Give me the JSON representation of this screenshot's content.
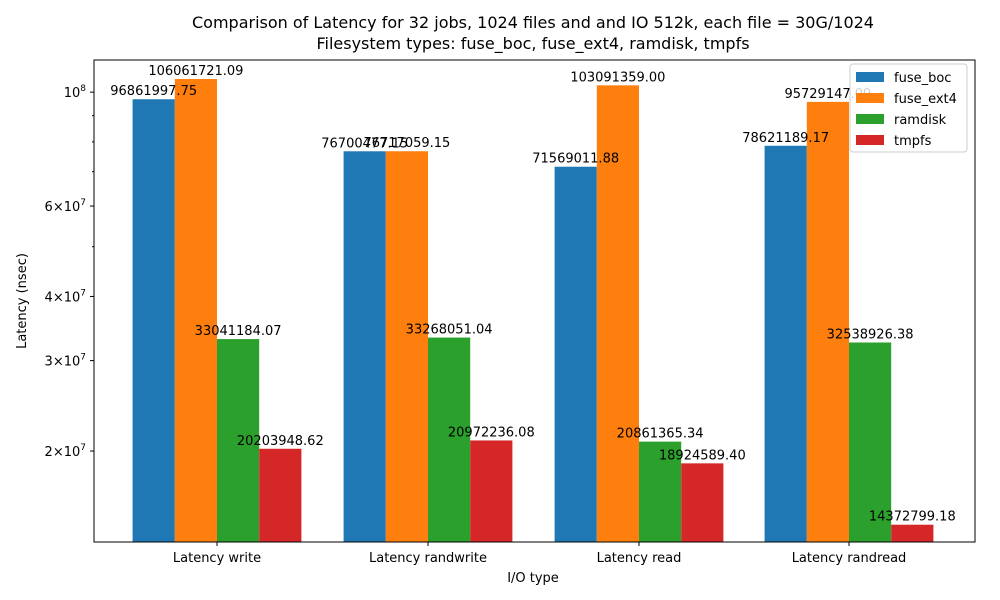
{
  "chart_data": {
    "type": "bar",
    "title": "Comparison of Latency for 32 jobs, 1024 files and  and IO 512k, each file = 30G/1024",
    "subtitle": "Filesystem types: fuse_boc, fuse_ext4, ramdisk, tmpfs",
    "xlabel": "I/O type",
    "ylabel": "Latency (nsec)",
    "yscale": "log",
    "ylim": [
      13300000,
      115500000
    ],
    "categories": [
      "Latency write",
      "Latency randwrite",
      "Latency read",
      "Latency randread"
    ],
    "series": [
      {
        "name": "fuse_boc",
        "color": "#1f77b4",
        "values": [
          96861997.75,
          76700477.15,
          71569011.88,
          78621189.17
        ],
        "labels": [
          "96861997.75",
          "76700477.15",
          "71569011.88",
          "78621189.17"
        ]
      },
      {
        "name": "fuse_ext4",
        "color": "#ff7f0e",
        "values": [
          106061721.09,
          76717059.15,
          103091359.0,
          95729147.09
        ],
        "labels": [
          "106061721.09",
          "76717059.15",
          "103091359.00",
          "95729147.09"
        ]
      },
      {
        "name": "ramdisk",
        "color": "#2ca02c",
        "values": [
          33041184.07,
          33268051.04,
          20861365.34,
          32538926.38
        ],
        "labels": [
          "33041184.07",
          "33268051.04",
          "20861365.34",
          "32538926.38"
        ]
      },
      {
        "name": "tmpfs",
        "color": "#d62728",
        "values": [
          20203948.62,
          20972236.08,
          18924589.4,
          14372799.18
        ],
        "labels": [
          "20203948.62",
          "20972236.08",
          "18924589.40",
          "14372799.18"
        ]
      }
    ],
    "y_major_ticks": [
      {
        "value": 20000000,
        "mantissa": "2",
        "exp": "7"
      },
      {
        "value": 30000000,
        "mantissa": "3",
        "exp": "7"
      },
      {
        "value": 40000000,
        "mantissa": "4",
        "exp": "7"
      },
      {
        "value": 60000000,
        "mantissa": "6",
        "exp": "7"
      },
      {
        "value": 100000000,
        "mantissa": "",
        "exp": "8"
      }
    ],
    "y_minor_ticks": [
      50000000,
      70000000,
      80000000,
      90000000
    ],
    "legend": {
      "position": "top-right"
    },
    "grid": false
  }
}
